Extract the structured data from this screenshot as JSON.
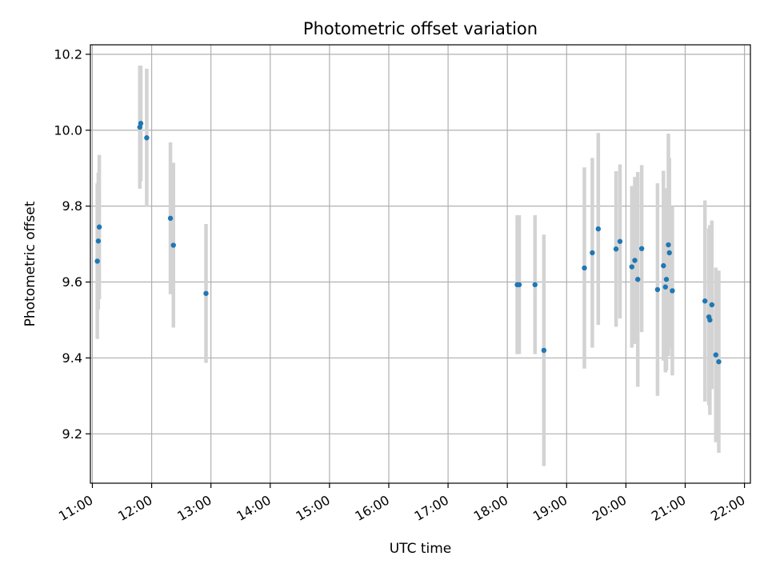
{
  "chart_data": {
    "type": "scatter",
    "title": "Photometric offset variation",
    "xlabel": "UTC time",
    "ylabel": "Photometric offset",
    "x_axis_type": "time",
    "xlim": [
      "10:58",
      "22:06"
    ],
    "ylim": [
      9.07,
      10.225
    ],
    "x_ticks": [
      "11:00",
      "12:00",
      "13:00",
      "14:00",
      "15:00",
      "16:00",
      "17:00",
      "18:00",
      "19:00",
      "20:00",
      "21:00",
      "22:00"
    ],
    "y_ticks": [
      9.2,
      9.4,
      9.6,
      9.8,
      10.0,
      10.2
    ],
    "y_tick_labels": [
      "9.2",
      "9.4",
      "9.6",
      "9.8",
      "10.0",
      "10.2"
    ],
    "grid": true,
    "legend": "none",
    "colors": {
      "points": "#1f77b4",
      "error_bars": "#d3d3d3",
      "grid": "#b0b0b0"
    },
    "series": [
      {
        "points": [
          {
            "x": "11:05",
            "y": 9.655,
            "err": 0.205
          },
          {
            "x": "11:06",
            "y": 9.708,
            "err": 0.18
          },
          {
            "x": "11:07",
            "y": 9.745,
            "err": 0.19
          },
          {
            "x": "11:48",
            "y": 10.008,
            "err": 0.162
          },
          {
            "x": "11:49",
            "y": 10.018,
            "err": 0.152
          },
          {
            "x": "11:55",
            "y": 9.98,
            "err": 0.182
          },
          {
            "x": "12:19",
            "y": 9.768,
            "err": 0.2
          },
          {
            "x": "12:22",
            "y": 9.697,
            "err": 0.217
          },
          {
            "x": "12:55",
            "y": 9.57,
            "err": 0.183
          },
          {
            "x": "18:10",
            "y": 9.593,
            "err": 0.183
          },
          {
            "x": "18:12",
            "y": 9.593,
            "err": 0.183
          },
          {
            "x": "18:28",
            "y": 9.593,
            "err": 0.183
          },
          {
            "x": "18:37",
            "y": 9.42,
            "err": 0.305
          },
          {
            "x": "19:18",
            "y": 9.637,
            "err": 0.265
          },
          {
            "x": "19:26",
            "y": 9.677,
            "err": 0.25
          },
          {
            "x": "19:32",
            "y": 9.74,
            "err": 0.253
          },
          {
            "x": "19:50",
            "y": 9.687,
            "err": 0.205
          },
          {
            "x": "19:54",
            "y": 9.707,
            "err": 0.203
          },
          {
            "x": "20:06",
            "y": 9.64,
            "err": 0.213
          },
          {
            "x": "20:09",
            "y": 9.657,
            "err": 0.22
          },
          {
            "x": "20:12",
            "y": 9.607,
            "err": 0.283
          },
          {
            "x": "20:16",
            "y": 9.688,
            "err": 0.22
          },
          {
            "x": "20:32",
            "y": 9.58,
            "err": 0.28
          },
          {
            "x": "20:38",
            "y": 9.643,
            "err": 0.25
          },
          {
            "x": "20:40",
            "y": 9.587,
            "err": 0.225
          },
          {
            "x": "20:41",
            "y": 9.607,
            "err": 0.24
          },
          {
            "x": "20:43",
            "y": 9.698,
            "err": 0.293
          },
          {
            "x": "20:44",
            "y": 9.677,
            "err": 0.25
          },
          {
            "x": "20:47",
            "y": 9.577,
            "err": 0.223
          },
          {
            "x": "21:20",
            "y": 9.55,
            "err": 0.265
          },
          {
            "x": "21:24",
            "y": 9.508,
            "err": 0.233
          },
          {
            "x": "21:25",
            "y": 9.5,
            "err": 0.25
          },
          {
            "x": "21:27",
            "y": 9.54,
            "err": 0.222
          },
          {
            "x": "21:31",
            "y": 9.408,
            "err": 0.23
          },
          {
            "x": "21:34",
            "y": 9.39,
            "err": 0.24
          }
        ]
      }
    ]
  }
}
